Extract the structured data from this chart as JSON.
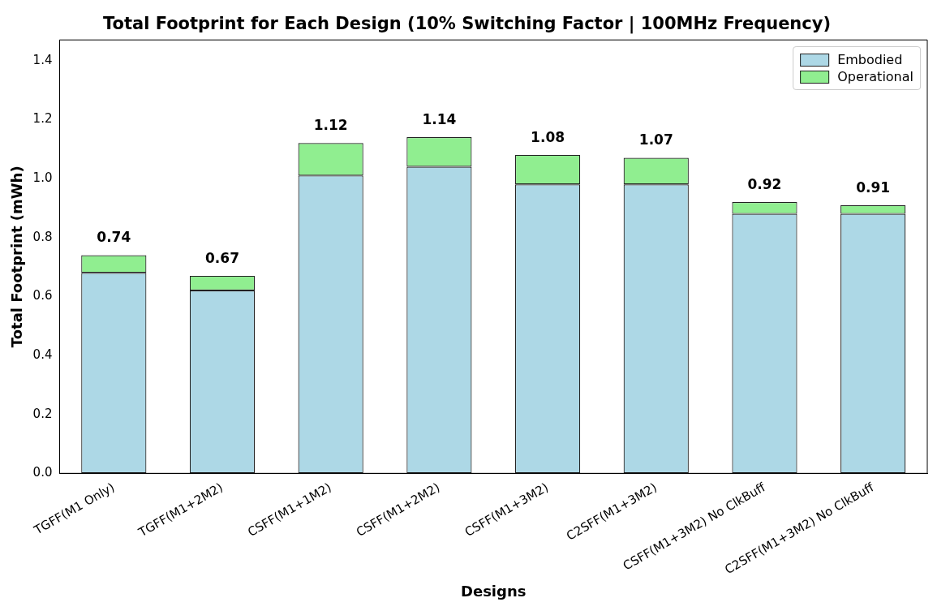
{
  "chart_data": {
    "type": "bar",
    "title": "Total Footprint for Each Design (10% Switching Factor | 100MHz Frequency)",
    "xlabel": "Designs",
    "ylabel": "Total Footprint (mWh)",
    "categories": [
      "TGFF(M1 Only)",
      "TGFF(M1+2M2)",
      "CSFF(M1+1M2)",
      "CSFF(M1+2M2)",
      "CSFF(M1+3M2)",
      "C2SFF(M1+3M2)",
      "CSFF(M1+3M2) No ClkBuff",
      "C2SFF(M1+3M2) No ClkBuff"
    ],
    "stacked": true,
    "series": [
      {
        "name": "Embodied",
        "color": "#add8e6",
        "values": [
          0.68,
          0.62,
          1.01,
          1.04,
          0.98,
          0.98,
          0.88,
          0.88
        ]
      },
      {
        "name": "Operational",
        "color": "#90ee90",
        "values": [
          0.06,
          0.05,
          0.11,
          0.1,
          0.1,
          0.09,
          0.04,
          0.03
        ]
      }
    ],
    "totals": [
      "0.74",
      "0.67",
      "1.12",
      "1.14",
      "1.08",
      "1.07",
      "0.92",
      "0.91"
    ],
    "ylim": [
      0,
      1.47
    ],
    "yticks": [
      {
        "value": 0,
        "label": "0.0"
      },
      0.2,
      0.4,
      0.6,
      0.8,
      {
        "value": 1,
        "label": "1.0"
      },
      1.2,
      1.4
    ],
    "grid": false,
    "legend": "top right"
  }
}
